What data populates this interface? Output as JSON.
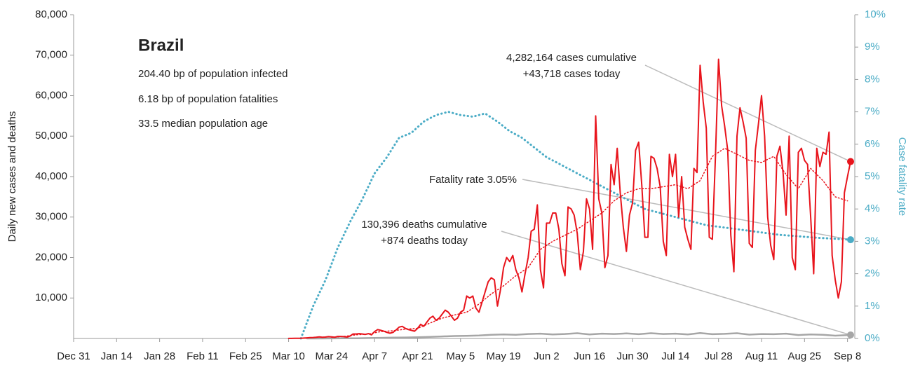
{
  "chart_data": {
    "type": "line",
    "y_label": "Daily new cases and deaths",
    "y2_label": "Case fatality rate",
    "xlim": [
      0,
      253
    ],
    "ylim": [
      0,
      80000
    ],
    "y2lim": [
      0,
      10
    ],
    "xticks": [
      {
        "value": 0,
        "label": "Dec 31"
      },
      {
        "value": 14,
        "label": "Jan 14"
      },
      {
        "value": 28,
        "label": "Jan 28"
      },
      {
        "value": 42,
        "label": "Feb 11"
      },
      {
        "value": 56,
        "label": "Feb 25"
      },
      {
        "value": 70,
        "label": "Mar 10"
      },
      {
        "value": 84,
        "label": "Mar 24"
      },
      {
        "value": 98,
        "label": "Apr 7"
      },
      {
        "value": 112,
        "label": "Apr 21"
      },
      {
        "value": 126,
        "label": "May 5"
      },
      {
        "value": 140,
        "label": "May 19"
      },
      {
        "value": 154,
        "label": "Jun 2"
      },
      {
        "value": 168,
        "label": "Jun 16"
      },
      {
        "value": 182,
        "label": "Jun 30"
      },
      {
        "value": 196,
        "label": "Jul 14"
      },
      {
        "value": 210,
        "label": "Jul 28"
      },
      {
        "value": 224,
        "label": "Aug 11"
      },
      {
        "value": 238,
        "label": "Aug 25"
      },
      {
        "value": 252,
        "label": "Sep 8"
      }
    ],
    "yticks": [
      {
        "value": 10000,
        "label": "10,000"
      },
      {
        "value": 20000,
        "label": "20,000"
      },
      {
        "value": 30000,
        "label": "30,000"
      },
      {
        "value": 40000,
        "label": "40,000"
      },
      {
        "value": 50000,
        "label": "50,000"
      },
      {
        "value": 60000,
        "label": "60,000"
      },
      {
        "value": 70000,
        "label": "70,000"
      },
      {
        "value": 80000,
        "label": "80,000"
      }
    ],
    "y2ticks": [
      {
        "value": 0,
        "label": "0%"
      },
      {
        "value": 1,
        "label": "1%"
      },
      {
        "value": 2,
        "label": "2%"
      },
      {
        "value": 3,
        "label": "3%"
      },
      {
        "value": 4,
        "label": "4%"
      },
      {
        "value": 5,
        "label": "5%"
      },
      {
        "value": 6,
        "label": "6%"
      },
      {
        "value": 7,
        "label": "7%"
      },
      {
        "value": 8,
        "label": "8%"
      },
      {
        "value": 9,
        "label": "9%"
      },
      {
        "value": 10,
        "label": "10%"
      }
    ],
    "annotations": {
      "title": "Brazil",
      "lines": [
        "204.40 bp of population infected",
        "6.18 bp of population fatalities",
        "33.5 median population age"
      ],
      "cases": [
        "4,282,164 cases cumulative",
        "+43,718 cases today"
      ],
      "fatality": "Fatality rate 3.05%",
      "deaths": [
        "130,396 deaths cumulative",
        "+874 deaths today"
      ]
    },
    "series": [
      {
        "color": "#4bacc6",
        "style": "dotted",
        "axis": "y2",
        "marker": true,
        "x": [
          74,
          78,
          82,
          86,
          90,
          94,
          98,
          102,
          106,
          110,
          114,
          118,
          122,
          126,
          130,
          134,
          138,
          142,
          146,
          150,
          154,
          158,
          162,
          166,
          170,
          174,
          178,
          182,
          186,
          190,
          194,
          198,
          202,
          206,
          210,
          214,
          218,
          222,
          226,
          230,
          234,
          238,
          242,
          246,
          250,
          253
        ],
        "values": [
          0,
          1,
          1.8,
          2.8,
          3.6,
          4.3,
          5.1,
          5.6,
          6.2,
          6.35,
          6.7,
          6.9,
          7.0,
          6.9,
          6.85,
          6.95,
          6.7,
          6.4,
          6.2,
          5.9,
          5.6,
          5.4,
          5.2,
          5.0,
          4.8,
          4.6,
          4.4,
          4.2,
          4.0,
          3.9,
          3.8,
          3.7,
          3.6,
          3.5,
          3.45,
          3.4,
          3.35,
          3.3,
          3.25,
          3.2,
          3.17,
          3.14,
          3.11,
          3.09,
          3.07,
          3.05
        ]
      },
      {
        "color": "#a6a6a6",
        "style": "solid",
        "width": 2.5,
        "marker": true,
        "x": [
          76,
          80,
          84,
          88,
          92,
          96,
          100,
          104,
          108,
          112,
          116,
          120,
          124,
          128,
          132,
          136,
          140,
          144,
          148,
          152,
          156,
          160,
          164,
          168,
          172,
          176,
          180,
          184,
          188,
          192,
          196,
          200,
          204,
          208,
          212,
          216,
          220,
          224,
          228,
          232,
          236,
          240,
          244,
          248,
          253
        ],
        "values": [
          0,
          5,
          15,
          30,
          60,
          100,
          150,
          200,
          250,
          300,
          400,
          500,
          600,
          650,
          750,
          900,
          1000,
          900,
          1100,
          1200,
          1000,
          1100,
          1300,
          1000,
          1200,
          1100,
          1250,
          1050,
          1300,
          1100,
          1200,
          1000,
          1350,
          1050,
          1150,
          1300,
          950,
          1100,
          1050,
          1200,
          850,
          1000,
          900,
          700,
          874
        ]
      },
      {
        "color": "#e8141c",
        "style": "dotted",
        "width": 1.5,
        "marker": false,
        "x": [
          84,
          88,
          92,
          96,
          100,
          104,
          108,
          112,
          116,
          120,
          124,
          128,
          132,
          136,
          140,
          144,
          148,
          152,
          156,
          160,
          164,
          168,
          172,
          176,
          180,
          184,
          188,
          192,
          196,
          200,
          204,
          208,
          212,
          216,
          220,
          224,
          228,
          232,
          236,
          240,
          244,
          248,
          252
        ],
        "values": [
          300,
          500,
          900,
          1100,
          1700,
          1900,
          2300,
          2500,
          3800,
          5000,
          5800,
          6500,
          8500,
          11000,
          13000,
          15500,
          17500,
          22000,
          24000,
          25500,
          27000,
          29000,
          31000,
          34000,
          36000,
          37000,
          37000,
          37500,
          38000,
          37000,
          39000,
          45000,
          47000,
          45500,
          44000,
          43500,
          45000,
          40500,
          37000,
          42000,
          39000,
          35000,
          34000
        ]
      },
      {
        "color": "#e8141c",
        "style": "solid",
        "width": 2,
        "marker": true,
        "x": [
          70,
          71,
          72,
          73,
          74,
          75,
          76,
          77,
          78,
          79,
          80,
          81,
          82,
          83,
          84,
          85,
          86,
          87,
          88,
          89,
          90,
          91,
          92,
          93,
          94,
          95,
          96,
          97,
          98,
          99,
          100,
          101,
          102,
          103,
          104,
          105,
          106,
          107,
          108,
          109,
          110,
          111,
          112,
          113,
          114,
          115,
          116,
          117,
          118,
          119,
          120,
          121,
          122,
          123,
          124,
          125,
          126,
          127,
          128,
          129,
          130,
          131,
          132,
          133,
          134,
          135,
          136,
          137,
          138,
          139,
          140,
          141,
          142,
          143,
          144,
          145,
          146,
          147,
          148,
          149,
          150,
          151,
          152,
          153,
          154,
          155,
          156,
          157,
          158,
          159,
          160,
          161,
          162,
          163,
          164,
          165,
          166,
          167,
          168,
          169,
          170,
          171,
          172,
          173,
          174,
          175,
          176,
          177,
          178,
          179,
          180,
          181,
          182,
          183,
          184,
          185,
          186,
          187,
          188,
          189,
          190,
          191,
          192,
          193,
          194,
          195,
          196,
          197,
          198,
          199,
          200,
          201,
          202,
          203,
          204,
          205,
          206,
          207,
          208,
          209,
          210,
          211,
          212,
          213,
          214,
          215,
          216,
          217,
          218,
          219,
          220,
          221,
          222,
          223,
          224,
          225,
          226,
          227,
          228,
          229,
          230,
          231,
          232,
          233,
          234,
          235,
          236,
          237,
          238,
          239,
          240,
          241,
          242,
          243,
          244,
          245,
          246,
          247,
          248,
          249,
          250,
          251,
          252,
          253
        ],
        "values": [
          10,
          20,
          30,
          50,
          60,
          100,
          150,
          200,
          250,
          300,
          400,
          300,
          350,
          450,
          400,
          300,
          500,
          500,
          450,
          350,
          600,
          1100,
          1100,
          1200,
          1100,
          1000,
          1200,
          900,
          1700,
          2200,
          2000,
          1800,
          1500,
          1300,
          1500,
          2100,
          2800,
          3000,
          2500,
          2200,
          2000,
          1800,
          2500,
          3500,
          3000,
          4000,
          5000,
          5500,
          4500,
          5000,
          6000,
          7000,
          6500,
          5500,
          4500,
          5000,
          6500,
          7000,
          10500,
          10000,
          10500,
          7500,
          6500,
          9000,
          11500,
          14000,
          15000,
          14500,
          8000,
          12000,
          17500,
          20000,
          19000,
          20500,
          17000,
          15000,
          11500,
          16000,
          20000,
          26500,
          27000,
          33000,
          17000,
          12500,
          28500,
          28500,
          31000,
          31000,
          27000,
          18500,
          15500,
          32500,
          32000,
          30500,
          26000,
          17000,
          21500,
          34500,
          32000,
          22000,
          55000,
          34500,
          31000,
          17500,
          20500,
          43000,
          38000,
          47000,
          36000,
          27500,
          21500,
          30500,
          33500,
          46500,
          48500,
          38000,
          25000,
          25000,
          45000,
          44500,
          42000,
          37500,
          24000,
          20500,
          45500,
          40000,
          45500,
          30000,
          40000,
          27500,
          24500,
          22000,
          42000,
          41000,
          67500,
          58500,
          52000,
          25000,
          24500,
          45000,
          69000,
          57500,
          52500,
          46500,
          25500,
          16500,
          50000,
          57000,
          53500,
          49500,
          23500,
          22500,
          46500,
          53000,
          60000,
          50000,
          30000,
          23000,
          19500,
          45000,
          47500,
          41000,
          30500,
          50000,
          20000,
          17000,
          46000,
          47000,
          44000,
          43000,
          30000,
          16000,
          47000,
          42500,
          46000,
          45500,
          51000,
          20500,
          14500,
          10000,
          14000,
          36000,
          40000,
          43718
        ]
      }
    ]
  }
}
